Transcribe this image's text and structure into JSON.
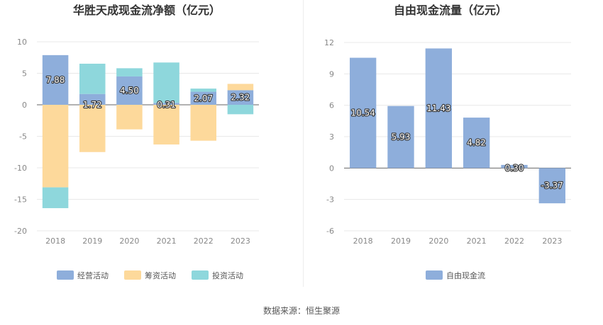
{
  "source_label": "数据来源：恒生聚源",
  "colors": {
    "operating": "#8eaedb",
    "financing": "#fdd99b",
    "investing": "#8ed7dc",
    "fcf": "#8eaedb",
    "grid": "#e8e8e8",
    "axis_text": "#888888"
  },
  "chart_data": [
    {
      "type": "bar",
      "stacked": true,
      "title": "华胜天成现金流净额（亿元）",
      "categories": [
        "2018",
        "2019",
        "2020",
        "2021",
        "2022",
        "2023"
      ],
      "ylim": [
        -20,
        10
      ],
      "yticks": [
        10,
        5,
        0,
        -5,
        -10,
        -15,
        -20
      ],
      "grid": true,
      "legend_position": "bottom",
      "series": [
        {
          "name": "经营活动",
          "values": [
            7.88,
            1.72,
            4.5,
            0.31,
            2.07,
            2.32
          ]
        },
        {
          "name": "筹资活动",
          "values": [
            -13.1,
            -7.5,
            -3.9,
            -6.3,
            -5.7,
            1.0
          ]
        },
        {
          "name": "投资活动",
          "values": [
            -3.3,
            4.8,
            1.3,
            6.4,
            0.5,
            -1.5
          ]
        }
      ],
      "data_labels": [
        "7.88",
        "1.72",
        "4.50",
        "0.31",
        "2.07",
        "2.32"
      ]
    },
    {
      "type": "bar",
      "title": "自由现金流量（亿元）",
      "categories": [
        "2018",
        "2019",
        "2020",
        "2021",
        "2022",
        "2023"
      ],
      "ylim": [
        -6,
        12
      ],
      "yticks": [
        12,
        9,
        6,
        3,
        0,
        -3,
        -6
      ],
      "grid": true,
      "legend_position": "bottom",
      "series": [
        {
          "name": "自由现金流",
          "values": [
            10.54,
            5.93,
            11.43,
            4.82,
            0.3,
            -3.37
          ]
        }
      ],
      "data_labels": [
        "10.54",
        "5.93",
        "11.43",
        "4.82",
        "0.30",
        "-3.37"
      ]
    }
  ]
}
